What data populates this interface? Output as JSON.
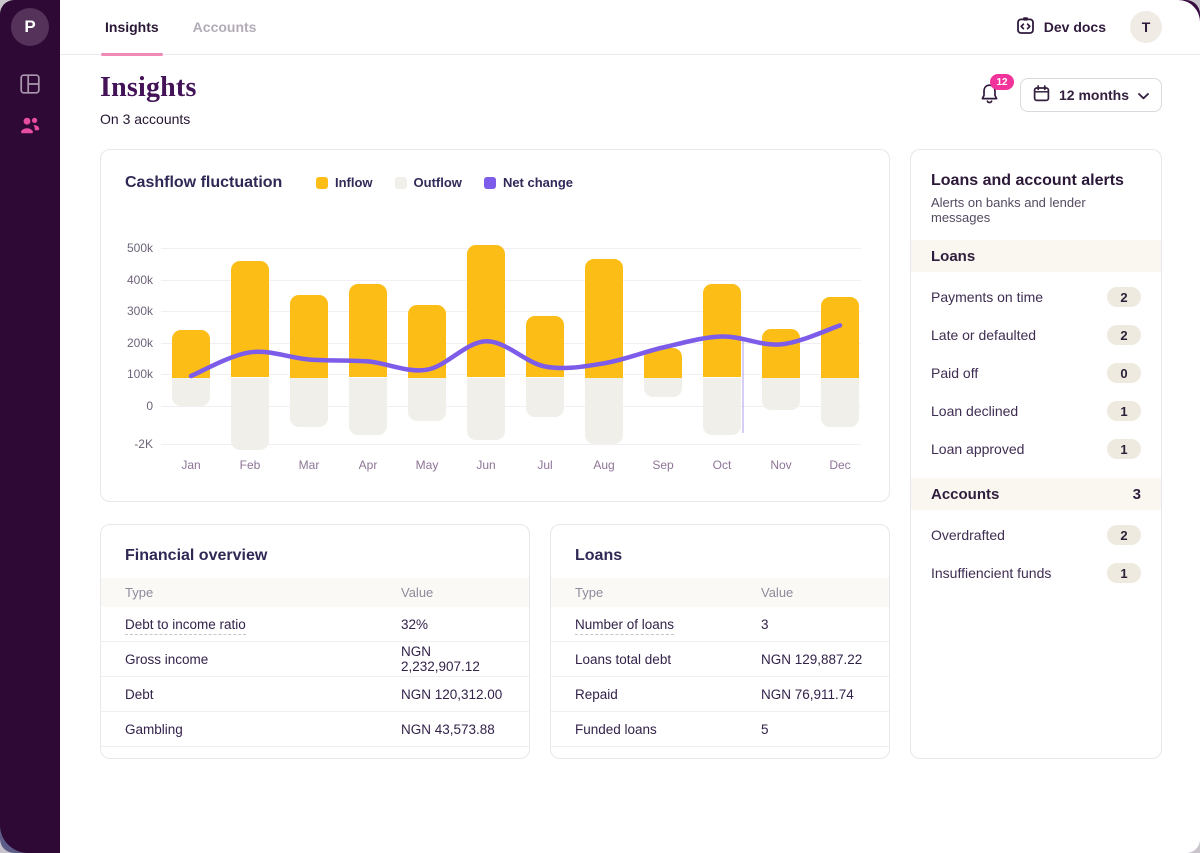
{
  "app": {
    "logo_letter": "P",
    "nav_tabs": [
      {
        "label": "Insights",
        "active": true
      },
      {
        "label": "Accounts",
        "active": false
      }
    ],
    "dev_docs_label": "Dev docs",
    "avatar_initial": "T",
    "notifications_count": "12",
    "period_selector_label": "12 months",
    "page_title": "Insights",
    "page_subtitle": "On 3 accounts"
  },
  "chart_data": {
    "type": "bar",
    "title": "Cashflow fluctuation",
    "categories": [
      "Jan",
      "Feb",
      "Mar",
      "Apr",
      "May",
      "Jun",
      "Jul",
      "Aug",
      "Sep",
      "Oct",
      "Nov",
      "Dec"
    ],
    "series": [
      {
        "name": "Inflow",
        "type": "bar",
        "color": "#fcbd17",
        "values_k": [
          240,
          460,
          350,
          385,
          320,
          510,
          285,
          465,
          185,
          385,
          245,
          345
        ]
      },
      {
        "name": "Outflow",
        "type": "bar",
        "color": "#f1efe9",
        "bottom_values_k": [
          0,
          -140,
          -67,
          -93,
          -46,
          -107,
          -36,
          -120,
          28,
          -93,
          -12,
          -67
        ]
      },
      {
        "name": "Net change",
        "type": "line",
        "color": "#7c5ce8",
        "values_k": [
          95,
          170,
          147,
          141,
          115,
          205,
          125,
          135,
          185,
          220,
          195,
          255
        ]
      }
    ],
    "bar_baseline_k": 90,
    "y_tick_labels": [
      "500k",
      "400k",
      "300k",
      "200k",
      "100k",
      "0",
      "-2K"
    ],
    "legend_position": "top",
    "grid": true
  },
  "financial_overview": {
    "title": "Financial overview",
    "columns": [
      "Type",
      "Value"
    ],
    "rows": [
      {
        "type": "Debt to income ratio",
        "value": "32%",
        "underlined": true
      },
      {
        "type": "Gross income",
        "value": "NGN 2,232,907.12"
      },
      {
        "type": "Debt",
        "value": "NGN 120,312.00"
      },
      {
        "type": "Gambling",
        "value": "NGN 43,573.88"
      }
    ]
  },
  "loans_table": {
    "title": "Loans",
    "columns": [
      "Type",
      "Value"
    ],
    "rows": [
      {
        "type": "Number of loans",
        "value": "3",
        "underlined": true
      },
      {
        "type": "Loans total debt",
        "value": "NGN 129,887.22"
      },
      {
        "type": "Repaid",
        "value": "NGN 76,911.74"
      },
      {
        "type": "Funded loans",
        "value": "5"
      }
    ]
  },
  "alerts_panel": {
    "title": "Loans and account alerts",
    "subtitle": "Alerts on banks and lender messages",
    "sections": [
      {
        "header": "Loans",
        "header_count": "",
        "items": [
          {
            "label": "Payments on time",
            "count": "2"
          },
          {
            "label": "Late or defaulted",
            "count": "2"
          },
          {
            "label": "Paid off",
            "count": "0"
          },
          {
            "label": "Loan declined",
            "count": "1"
          },
          {
            "label": "Loan approved",
            "count": "1"
          }
        ]
      },
      {
        "header": "Accounts",
        "header_count": "3",
        "items": [
          {
            "label": "Overdrafted",
            "count": "2"
          },
          {
            "label": "Insuffiencient funds",
            "count": "1"
          }
        ]
      }
    ]
  },
  "colors": {
    "accent_pink": "#f2339c",
    "tab_underline_pink": "#f18ab5",
    "inflow_yellow": "#fcbd17",
    "outflow_gray": "#f1efe9",
    "net_change_purple": "#7c5ce8",
    "sidebar_purple": "#2e0935",
    "heading_plum": "#431257",
    "title_indigo": "#2f2955"
  }
}
